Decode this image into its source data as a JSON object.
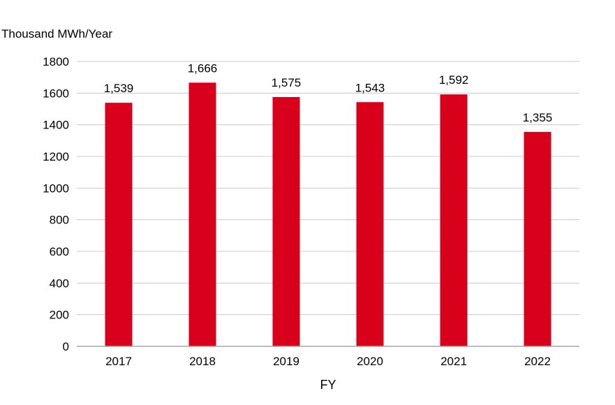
{
  "chart_data": {
    "type": "bar",
    "title": "",
    "ylabel": "Thousand MWh/Year",
    "xlabel": "FY",
    "categories": [
      "2017",
      "2018",
      "2019",
      "2020",
      "2021",
      "2022"
    ],
    "values": [
      1539,
      1666,
      1575,
      1543,
      1592,
      1355
    ],
    "data_labels": [
      "1,539",
      "1,666",
      "1,575",
      "1,543",
      "1,592",
      "1,355"
    ],
    "ylim": [
      0,
      1800
    ],
    "yticks": [
      0,
      200,
      400,
      600,
      800,
      1000,
      1200,
      1400,
      1600,
      1800
    ],
    "grid": true,
    "legend": "none",
    "bar_color": "#d9001b"
  }
}
